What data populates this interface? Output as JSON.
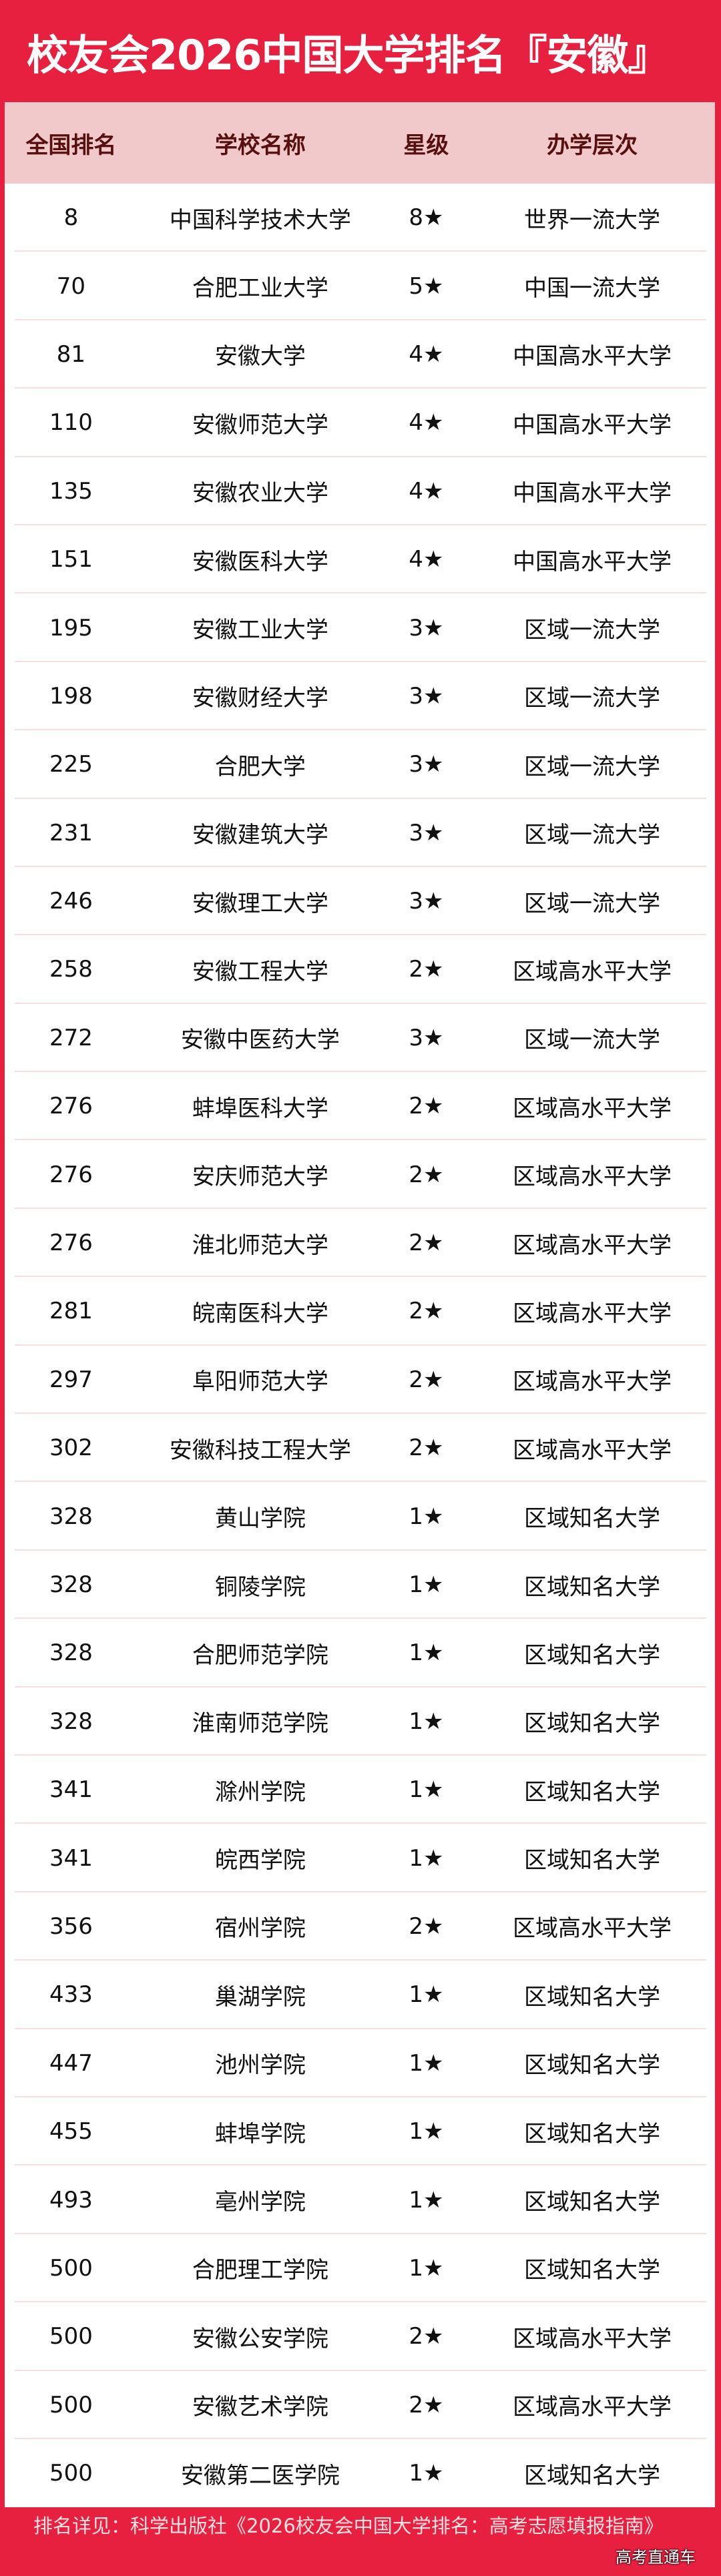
{
  "title": "校友会2026中国大学排名『安徽』",
  "headers": [
    "全国排名",
    "学校名称",
    "星级",
    "办学层次"
  ],
  "rows": [
    [
      "8",
      "中国科学技术大学",
      "8★",
      "世界一流大学"
    ],
    [
      "70",
      "合肥工业大学",
      "5★",
      "中国一流大学"
    ],
    [
      "81",
      "安徽大学",
      "4★",
      "中国高水平大学"
    ],
    [
      "110",
      "安徽师范大学",
      "4★",
      "中国高水平大学"
    ],
    [
      "135",
      "安徽农业大学",
      "4★",
      "中国高水平大学"
    ],
    [
      "151",
      "安徽医科大学",
      "4★",
      "中国高水平大学"
    ],
    [
      "195",
      "安徽工业大学",
      "3★",
      "区域一流大学"
    ],
    [
      "198",
      "安徽财经大学",
      "3★",
      "区域一流大学"
    ],
    [
      "225",
      "合肥大学",
      "3★",
      "区域一流大学"
    ],
    [
      "231",
      "安徽建筑大学",
      "3★",
      "区域一流大学"
    ],
    [
      "246",
      "安徽理工大学",
      "3★",
      "区域一流大学"
    ],
    [
      "258",
      "安徽工程大学",
      "2★",
      "区域高水平大学"
    ],
    [
      "272",
      "安徽中医药大学",
      "3★",
      "区域一流大学"
    ],
    [
      "276",
      "蚌埠医科大学",
      "2★",
      "区域高水平大学"
    ],
    [
      "276",
      "安庆师范大学",
      "2★",
      "区域高水平大学"
    ],
    [
      "276",
      "淮北师范大学",
      "2★",
      "区域高水平大学"
    ],
    [
      "281",
      "皖南医科大学",
      "2★",
      "区域高水平大学"
    ],
    [
      "297",
      "阜阳师范大学",
      "2★",
      "区域高水平大学"
    ],
    [
      "302",
      "安徽科技工程大学",
      "2★",
      "区域高水平大学"
    ],
    [
      "328",
      "黄山学院",
      "1★",
      "区域知名大学"
    ],
    [
      "328",
      "铜陵学院",
      "1★",
      "区域知名大学"
    ],
    [
      "328",
      "合肥师范学院",
      "1★",
      "区域知名大学"
    ],
    [
      "328",
      "淮南师范学院",
      "1★",
      "区域知名大学"
    ],
    [
      "341",
      "滁州学院",
      "1★",
      "区域知名大学"
    ],
    [
      "341",
      "皖西学院",
      "1★",
      "区域知名大学"
    ],
    [
      "356",
      "宿州学院",
      "2★",
      "区域高水平大学"
    ],
    [
      "433",
      "巢湖学院",
      "1★",
      "区域知名大学"
    ],
    [
      "447",
      "池州学院",
      "1★",
      "区域知名大学"
    ],
    [
      "455",
      "蚌埠学院",
      "1★",
      "区域知名大学"
    ],
    [
      "493",
      "亳州学院",
      "1★",
      "区域知名大学"
    ],
    [
      "500",
      "合肥理工学院",
      "1★",
      "区域知名大学"
    ],
    [
      "500",
      "安徽公安学院",
      "2★",
      "区域高水平大学"
    ],
    [
      "500",
      "安徽艺术学院",
      "2★",
      "区域高水平大学"
    ],
    [
      "500",
      "安徽第二医学院",
      "1★",
      "区域知名大学"
    ]
  ],
  "footer": "排名详见：科学出版社《2026校友会中国大学排名：高考志愿填报指南》",
  "watermark": "高考直通车",
  "colors": {
    "brand": "#e82040",
    "header_bg": "#f2c9ca",
    "header_text": "#55100f"
  }
}
